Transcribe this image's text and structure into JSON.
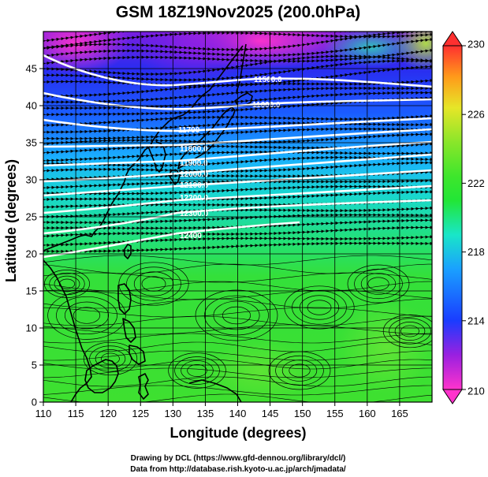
{
  "title": "GSM 18Z19Nov2025 (200.0hPa)",
  "x_axis": {
    "label": "Longitude (degrees)",
    "range": [
      110,
      170
    ],
    "ticks": [
      110,
      115,
      120,
      125,
      130,
      135,
      140,
      145,
      150,
      155,
      160,
      165
    ]
  },
  "y_axis": {
    "label": "Latitude  (degrees)",
    "range": [
      0,
      50
    ],
    "ticks": [
      0,
      5,
      10,
      15,
      20,
      25,
      30,
      35,
      40,
      45
    ]
  },
  "colorbar": {
    "range": [
      210,
      230
    ],
    "ticks": [
      210,
      214,
      218,
      222,
      226,
      230
    ],
    "colors": [
      "#ff33cc",
      "#9a20e0",
      "#1a3cff",
      "#1aa0ff",
      "#19e6c8",
      "#22e636",
      "#8ae62a",
      "#e6e628",
      "#ff9a1a",
      "#ff3030"
    ]
  },
  "contours": {
    "labels": [
      "11500.0",
      "11600.0",
      "11700",
      "11800.0",
      "11900.0",
      "12000.0",
      "12100.0",
      "12200.0",
      "12300.0",
      "12400"
    ]
  },
  "credits": {
    "line1": "Drawing by DCL (https://www.gfd-dennou.org/library/dcl/)",
    "line2": "Data from http://database.rish.kyoto-u.ac.jp/arch/jmadata/"
  }
}
